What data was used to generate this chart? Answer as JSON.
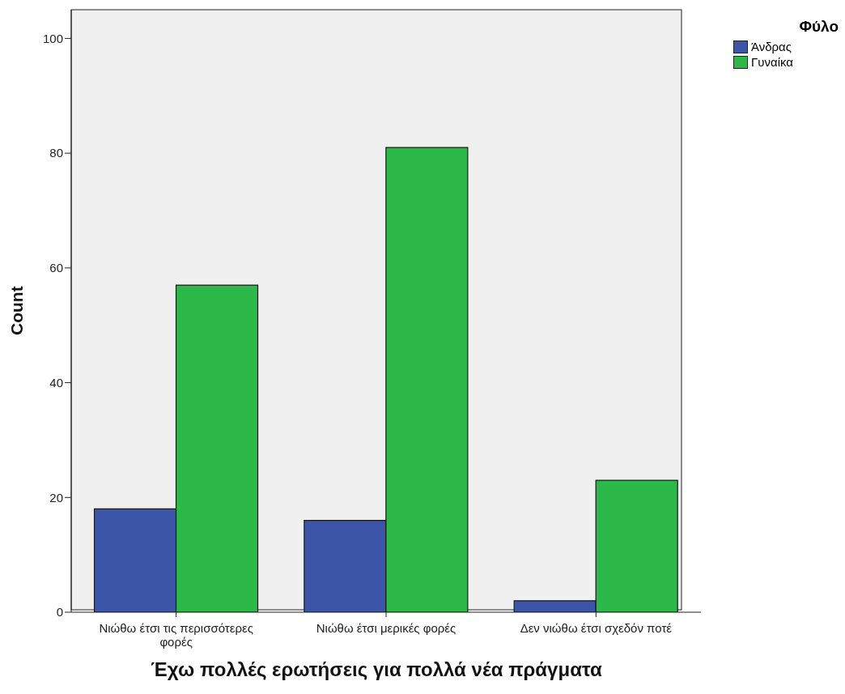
{
  "chart_data": {
    "type": "bar",
    "xlabel": "Έχω πολλές ερωτήσεις για πολλά νέα πράγματα",
    "ylabel": "Count",
    "legend_title": "Φύλο",
    "categories": [
      "Νιώθω έτσι τις περισσότερες φορές",
      "Νιώθω έτσι μερικές φορές",
      "Δεν νιώθω έτσι σχεδόν ποτέ"
    ],
    "series": [
      {
        "name": "Άνδρας",
        "color": "#3c55a8",
        "values": [
          18,
          16,
          2
        ]
      },
      {
        "name": "Γυναίκα",
        "color": "#2db84a",
        "values": [
          57,
          81,
          23
        ]
      }
    ],
    "ylim": [
      0,
      105
    ],
    "yticks": [
      0,
      20,
      40,
      60,
      80,
      100
    ],
    "grid": false,
    "legend": "top right"
  }
}
